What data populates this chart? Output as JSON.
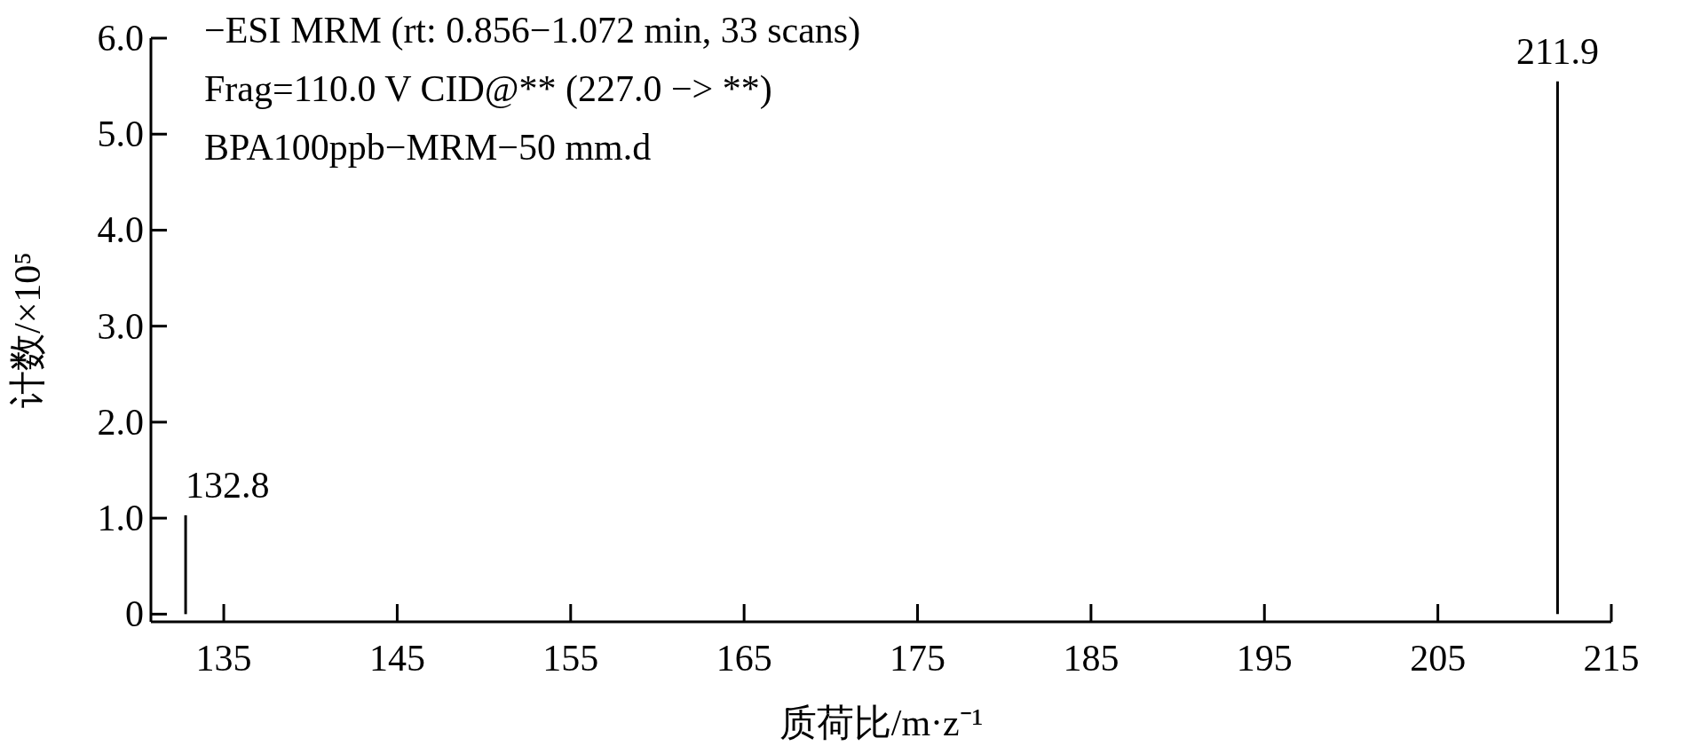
{
  "chart_data": {
    "type": "bar",
    "x": [
      132.8,
      211.9
    ],
    "values": [
      1.03,
      5.55
    ],
    "color": "#000000",
    "xlabel": "质荷比/m·z⁻¹",
    "ylabel": "计数/×10⁵",
    "xlim": [
      130.8,
      215
    ],
    "xticks": [
      135,
      145,
      155,
      165,
      175,
      185,
      195,
      205,
      215
    ],
    "ylim": [
      -0.08,
      6.0
    ],
    "yticks": [
      {
        "value": 0,
        "label": "0"
      },
      {
        "value": 1,
        "label": "1.0"
      },
      {
        "value": 2,
        "label": "2.0"
      },
      {
        "value": 3,
        "label": "3.0"
      },
      {
        "value": 4,
        "label": "4.0"
      },
      {
        "value": 5,
        "label": "5.0"
      },
      {
        "value": 6,
        "label": "6.0"
      }
    ],
    "grid": false,
    "annotations": [
      "−ESI MRM (rt: 0.856−1.072 min, 33 scans)",
      "Frag=110.0 V CID@** (227.0 −> **)",
      "BPA100ppb−MRM−50 mm.d",
      {
        "text": "132.8",
        "x": 132.8,
        "y": 1.03
      },
      {
        "text": "211.9",
        "x": 211.9,
        "y": 5.55
      }
    ]
  }
}
